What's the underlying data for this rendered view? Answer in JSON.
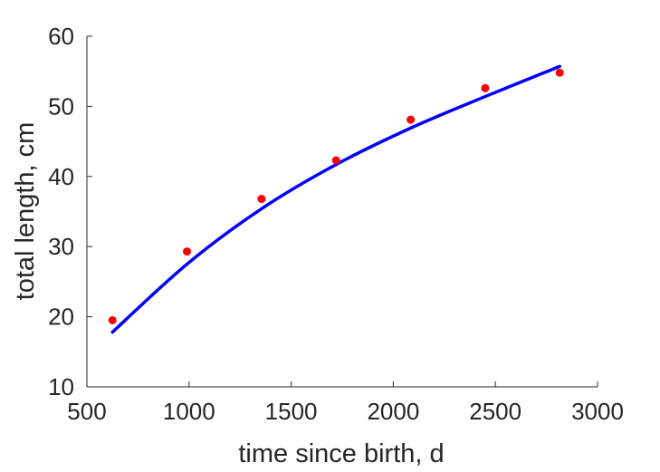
{
  "chart_data": {
    "type": "scatter",
    "xlabel": "time since birth, d",
    "ylabel": "total length, cm",
    "xlim": [
      500,
      3000
    ],
    "ylim": [
      10,
      60
    ],
    "xticks": [
      500,
      1000,
      1500,
      2000,
      2500,
      3000
    ],
    "yticks": [
      10,
      20,
      30,
      40,
      50,
      60
    ],
    "grid": false,
    "legend": "none",
    "series": [
      {
        "kind": "points",
        "color": "#ff0000",
        "x": [
          625,
          990,
          1355,
          1720,
          2085,
          2450,
          2815
        ],
        "y": [
          19.5,
          29.3,
          36.8,
          42.3,
          48.1,
          52.6,
          54.8
        ]
      },
      {
        "kind": "line",
        "color": "#0000ff",
        "x": [
          625,
          990,
          1355,
          1720,
          2085,
          2450,
          2815
        ],
        "y": [
          17.8,
          27.5,
          35.4,
          41.7,
          46.9,
          51.4,
          55.7
        ]
      }
    ]
  }
}
